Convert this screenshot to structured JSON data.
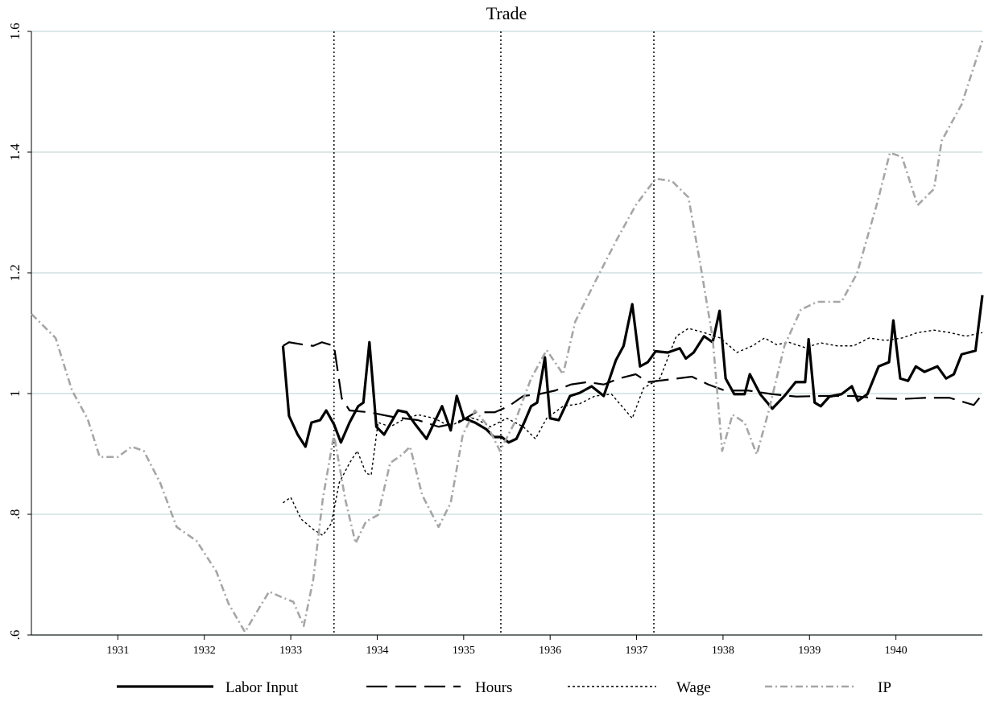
{
  "chart_data": {
    "type": "line",
    "title": "Trade",
    "xlim": [
      1930,
      1941
    ],
    "xticks": [
      1931,
      1932,
      1933,
      1934,
      1935,
      1936,
      1937,
      1938,
      1939,
      1940
    ],
    "ylim": [
      0.6,
      1.6
    ],
    "yticks": [
      {
        "value": 0.6,
        "label": ".6"
      },
      {
        "value": 0.8,
        "label": ".8"
      },
      1,
      1.2,
      1.4,
      1.6
    ],
    "grid": true,
    "vlines": [
      1933.5,
      1935.43,
      1937.2
    ],
    "legend": "bottom",
    "series": [
      {
        "name": "Labor Input",
        "color": "#000000",
        "dash": "solid",
        "x": [
          1932.91,
          1932.98,
          1933.08,
          1933.17,
          1933.24,
          1933.34,
          1933.41,
          1933.5,
          1933.58,
          1933.68,
          1933.78,
          1933.84,
          1933.91,
          1933.99,
          1934.08,
          1934.24,
          1934.34,
          1934.44,
          1934.57,
          1934.75,
          1934.85,
          1934.92,
          1935.0,
          1935.13,
          1935.26,
          1935.35,
          1935.44,
          1935.52,
          1935.61,
          1935.7,
          1935.78,
          1935.85,
          1935.94,
          1936.0,
          1936.1,
          1936.23,
          1936.34,
          1936.48,
          1936.62,
          1936.76,
          1936.85,
          1936.95,
          1937.04,
          1937.13,
          1937.22,
          1937.36,
          1937.5,
          1937.57,
          1937.66,
          1937.78,
          1937.88,
          1937.96,
          1938.03,
          1938.13,
          1938.25,
          1938.31,
          1938.43,
          1938.57,
          1938.71,
          1938.84,
          1938.95,
          1938.99,
          1939.06,
          1939.13,
          1939.23,
          1939.37,
          1939.49,
          1939.56,
          1939.67,
          1939.8,
          1939.92,
          1939.97,
          1940.05,
          1940.14,
          1940.23,
          1940.33,
          1940.48,
          1940.58,
          1940.67,
          1940.76,
          1940.92,
          1941.0
        ],
        "values": [
          1.079,
          0.963,
          0.932,
          0.912,
          0.952,
          0.956,
          0.972,
          0.949,
          0.919,
          0.952,
          0.979,
          0.985,
          1.085,
          0.945,
          0.932,
          0.972,
          0.969,
          0.949,
          0.925,
          0.979,
          0.939,
          0.996,
          0.959,
          0.952,
          0.941,
          0.928,
          0.928,
          0.919,
          0.925,
          0.952,
          0.979,
          0.985,
          1.06,
          0.959,
          0.956,
          0.996,
          1.001,
          1.012,
          0.996,
          1.055,
          1.079,
          1.148,
          1.045,
          1.052,
          1.07,
          1.068,
          1.075,
          1.058,
          1.068,
          1.095,
          1.085,
          1.137,
          1.025,
          0.999,
          0.999,
          1.032,
          0.999,
          0.975,
          0.996,
          1.019,
          1.019,
          1.09,
          0.985,
          0.979,
          0.995,
          0.999,
          1.012,
          0.988,
          0.999,
          1.045,
          1.052,
          1.121,
          1.025,
          1.021,
          1.045,
          1.036,
          1.045,
          1.025,
          1.032,
          1.065,
          1.071,
          1.163
        ]
      },
      {
        "name": "Hours",
        "color": "#000000",
        "dash": "long-dash",
        "x": [
          1932.91,
          1932.98,
          1933.15,
          1933.26,
          1933.36,
          1933.5,
          1933.59,
          1933.68,
          1933.91,
          1934.19,
          1934.47,
          1934.71,
          1934.94,
          1935.14,
          1935.36,
          1935.52,
          1935.69,
          1935.87,
          1936.06,
          1936.24,
          1936.43,
          1936.62,
          1936.8,
          1936.99,
          1937.13,
          1937.36,
          1937.64,
          1937.83,
          1938.02,
          1938.29,
          1938.57,
          1938.85,
          1939.13,
          1939.51,
          1939.79,
          1940.07,
          1940.35,
          1940.62,
          1940.9,
          1941.0
        ],
        "values": [
          1.079,
          1.085,
          1.081,
          1.079,
          1.085,
          1.079,
          0.992,
          0.972,
          0.969,
          0.961,
          0.956,
          0.945,
          0.952,
          0.969,
          0.969,
          0.979,
          0.996,
          0.999,
          1.005,
          1.015,
          1.019,
          1.015,
          1.025,
          1.032,
          1.019,
          1.023,
          1.028,
          1.015,
          1.005,
          1.005,
          0.999,
          0.995,
          0.996,
          0.996,
          0.992,
          0.991,
          0.993,
          0.993,
          0.981,
          0.999
        ]
      },
      {
        "name": "Wage",
        "color": "#000000",
        "dash": "dot",
        "x": [
          1932.91,
          1933.0,
          1933.12,
          1933.26,
          1933.37,
          1933.47,
          1933.56,
          1933.68,
          1933.77,
          1933.87,
          1933.93,
          1934.01,
          1934.15,
          1934.29,
          1934.47,
          1934.66,
          1934.85,
          1934.99,
          1935.13,
          1935.31,
          1935.5,
          1935.69,
          1935.83,
          1935.96,
          1936.15,
          1936.34,
          1936.52,
          1936.71,
          1936.95,
          1937.08,
          1937.27,
          1937.46,
          1937.6,
          1937.78,
          1937.97,
          1938.16,
          1938.34,
          1938.48,
          1938.62,
          1938.76,
          1938.95,
          1939.13,
          1939.32,
          1939.51,
          1939.69,
          1939.88,
          1940.07,
          1940.25,
          1940.44,
          1940.62,
          1940.81,
          1941.0
        ],
        "values": [
          0.819,
          0.828,
          0.792,
          0.775,
          0.765,
          0.785,
          0.852,
          0.885,
          0.905,
          0.868,
          0.865,
          0.952,
          0.945,
          0.956,
          0.965,
          0.959,
          0.945,
          0.959,
          0.959,
          0.945,
          0.959,
          0.945,
          0.925,
          0.959,
          0.979,
          0.983,
          0.996,
          0.999,
          0.959,
          1.009,
          1.025,
          1.095,
          1.108,
          1.101,
          1.092,
          1.068,
          1.079,
          1.092,
          1.081,
          1.085,
          1.076,
          1.084,
          1.079,
          1.079,
          1.092,
          1.088,
          1.092,
          1.101,
          1.105,
          1.101,
          1.095,
          1.101
        ]
      },
      {
        "name": "IP",
        "color": "#a6a6a6",
        "dash": "dash-dot",
        "x": [
          1930.0,
          1930.28,
          1930.47,
          1930.65,
          1930.79,
          1931.0,
          1931.16,
          1931.3,
          1931.49,
          1931.68,
          1931.91,
          1932.14,
          1932.28,
          1932.47,
          1932.61,
          1932.75,
          1932.89,
          1933.03,
          1933.15,
          1933.26,
          1933.37,
          1933.5,
          1933.63,
          1933.75,
          1933.87,
          1934.01,
          1934.15,
          1934.29,
          1934.38,
          1934.52,
          1934.71,
          1934.85,
          1934.99,
          1935.13,
          1935.27,
          1935.42,
          1935.59,
          1935.78,
          1935.96,
          1936.15,
          1936.29,
          1936.52,
          1936.76,
          1936.99,
          1937.22,
          1937.41,
          1937.6,
          1937.74,
          1937.88,
          1937.99,
          1938.11,
          1938.25,
          1938.39,
          1938.53,
          1938.71,
          1938.9,
          1939.09,
          1939.37,
          1939.55,
          1939.79,
          1939.93,
          1940.07,
          1940.25,
          1940.44,
          1940.53,
          1940.76,
          1941.0
        ],
        "values": [
          1.132,
          1.092,
          1.005,
          0.958,
          0.895,
          0.895,
          0.912,
          0.905,
          0.852,
          0.779,
          0.756,
          0.705,
          0.652,
          0.605,
          0.639,
          0.672,
          0.663,
          0.655,
          0.615,
          0.692,
          0.825,
          0.932,
          0.825,
          0.752,
          0.788,
          0.799,
          0.885,
          0.899,
          0.912,
          0.832,
          0.779,
          0.819,
          0.932,
          0.972,
          0.948,
          0.905,
          0.952,
          1.025,
          1.072,
          1.032,
          1.119,
          1.185,
          1.252,
          1.312,
          1.356,
          1.352,
          1.325,
          1.212,
          1.092,
          0.905,
          0.965,
          0.952,
          0.899,
          0.972,
          1.079,
          1.139,
          1.152,
          1.152,
          1.199,
          1.319,
          1.399,
          1.392,
          1.312,
          1.339,
          1.419,
          1.479,
          1.585
        ]
      }
    ]
  }
}
